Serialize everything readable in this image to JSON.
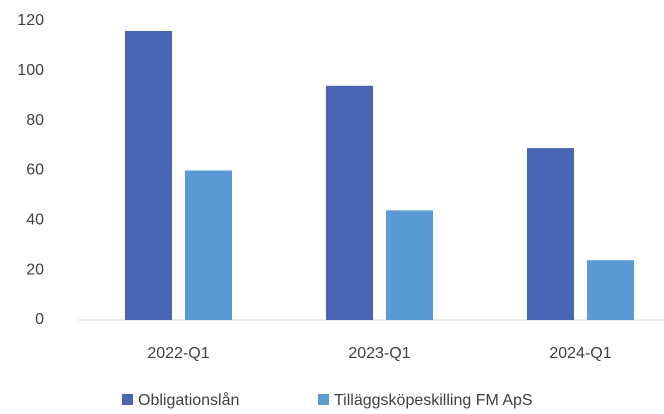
{
  "chart_data": {
    "type": "bar",
    "categories": [
      "2022-Q1",
      "2023-Q1",
      "2024-Q1"
    ],
    "series": [
      {
        "name": "Obligationslån",
        "color": "#4a65b3",
        "values": [
          116,
          94,
          69
        ]
      },
      {
        "name": "Tilläggsköpeskilling FM ApS",
        "color": "#5b9bd5",
        "values": [
          60,
          44,
          24
        ]
      }
    ],
    "ylim": [
      0,
      120
    ],
    "yticks": [
      0,
      20,
      40,
      60,
      80,
      100,
      120
    ],
    "grid": false,
    "legend": "bottom"
  }
}
